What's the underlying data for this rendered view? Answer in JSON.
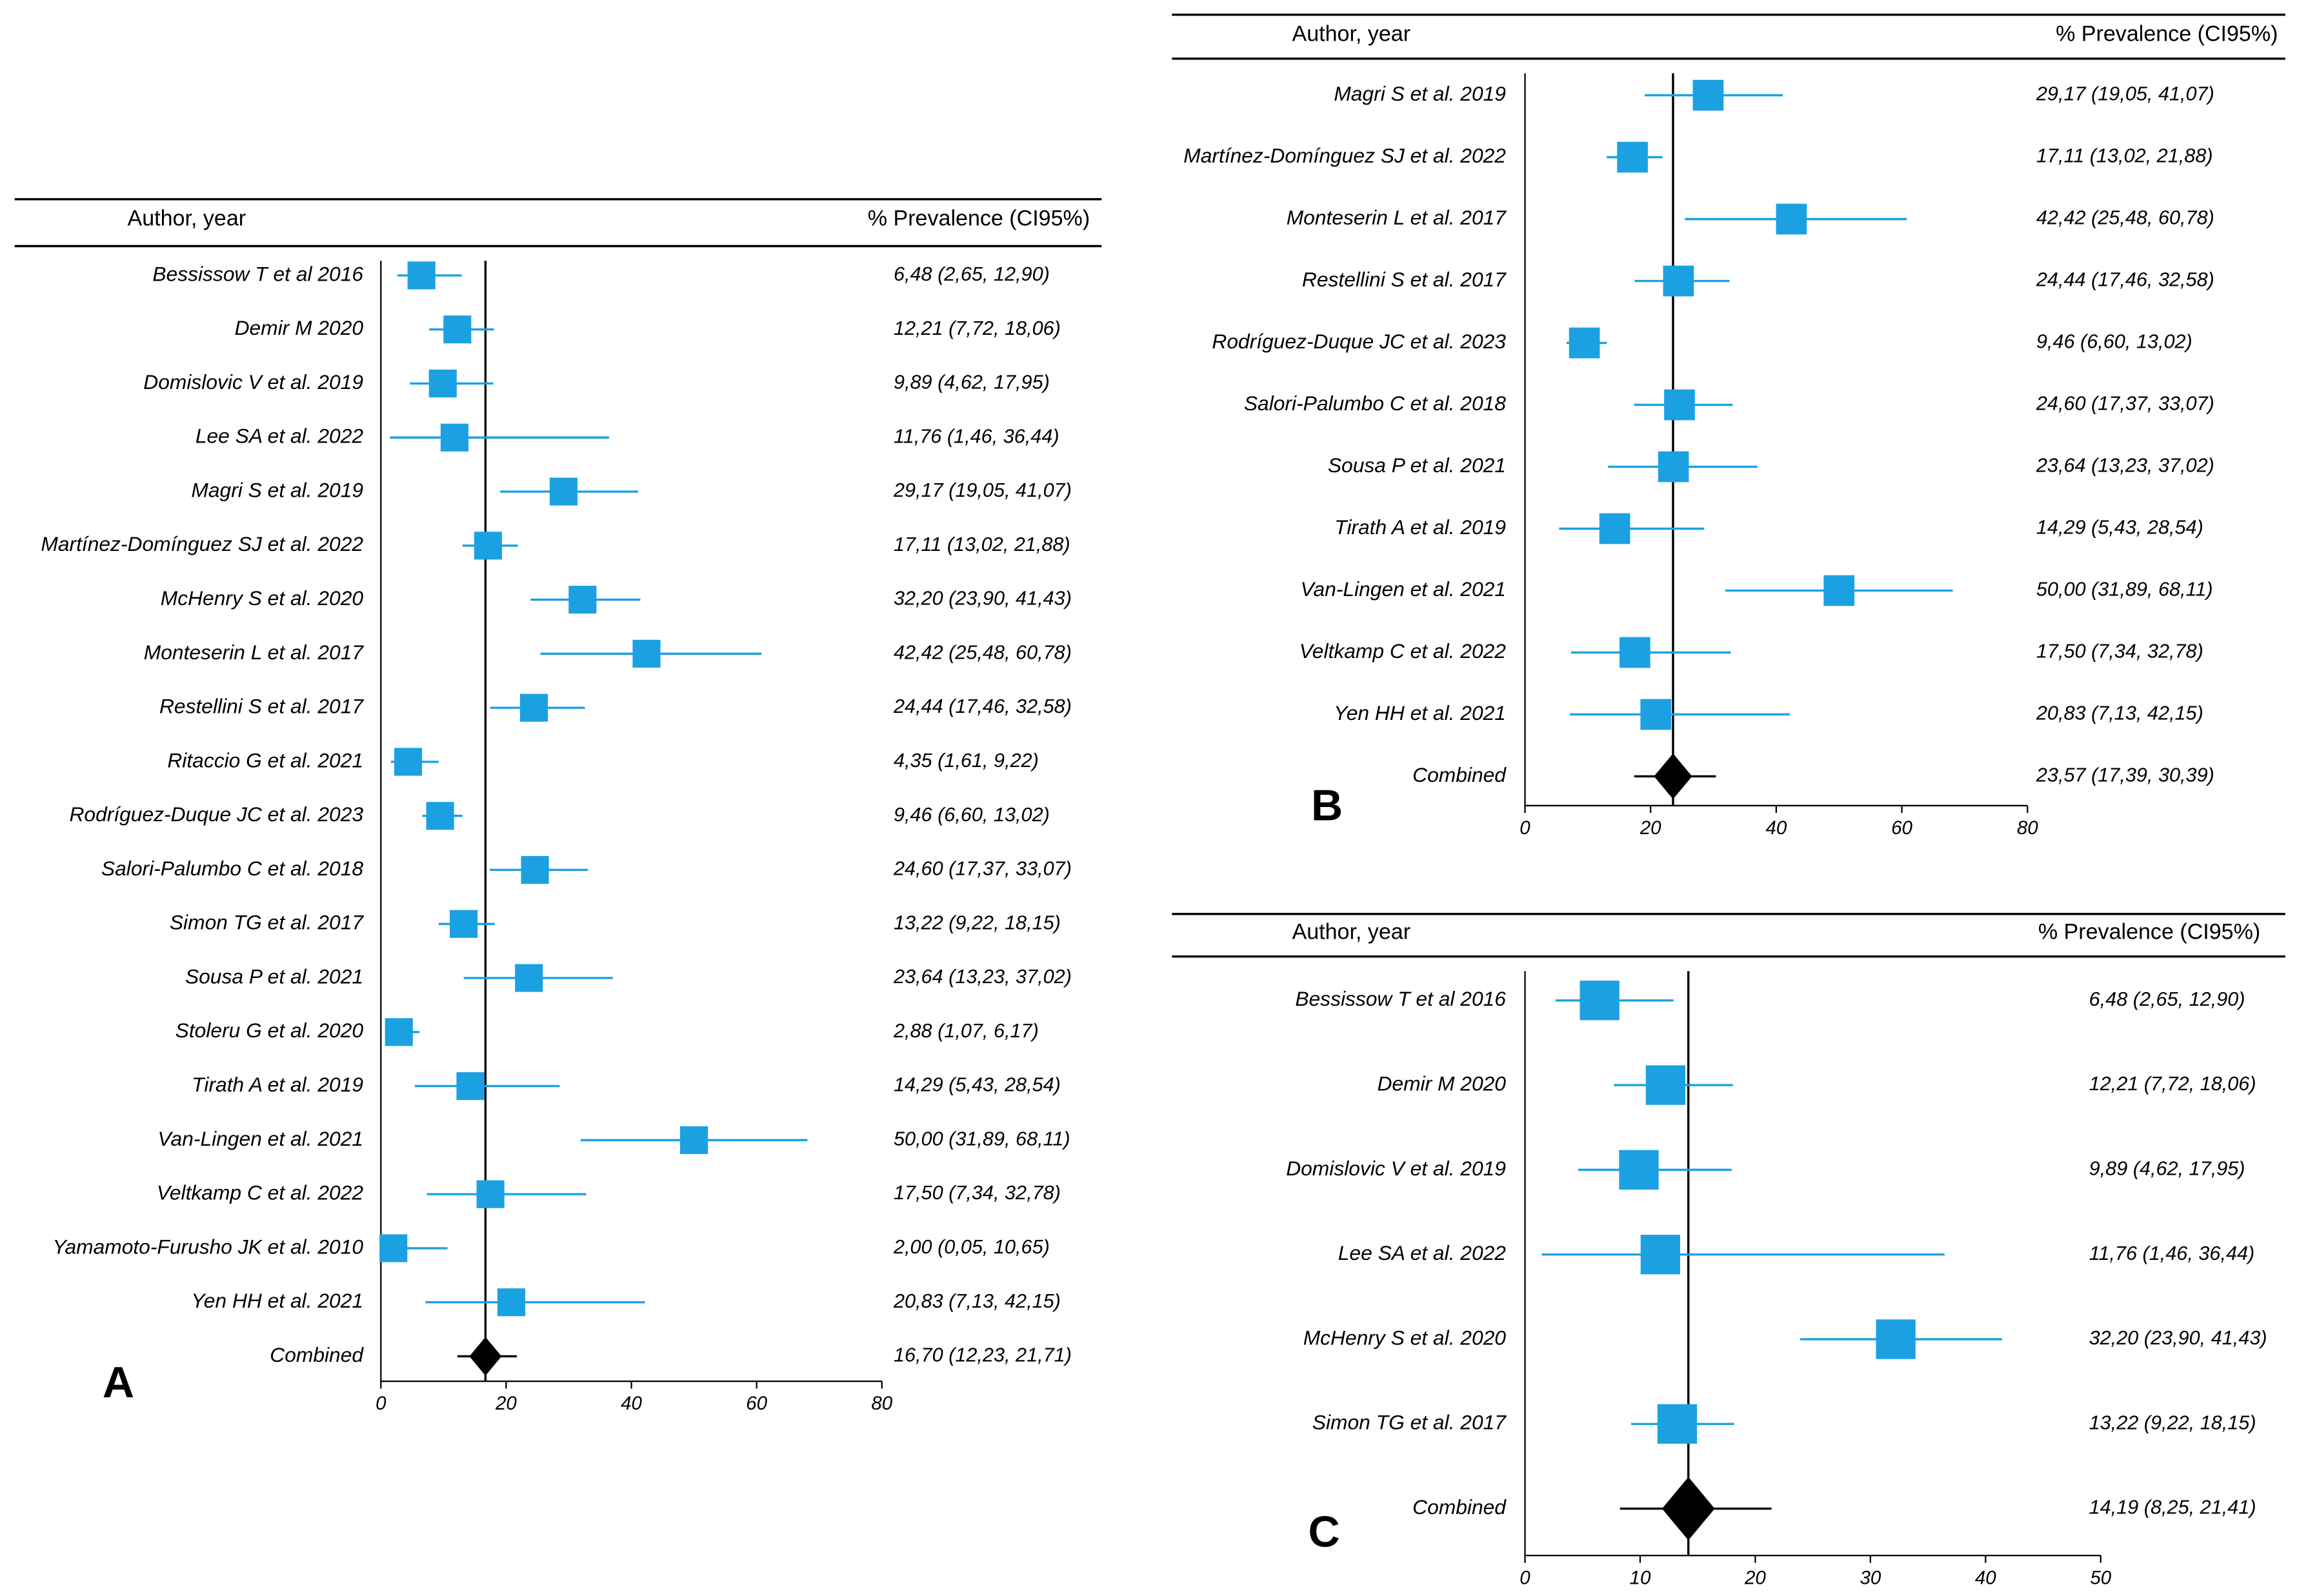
{
  "chart_data": [
    {
      "type": "forest",
      "label": "A",
      "column_headers": [
        "Author, year",
        "% Prevalence (CI95%)"
      ],
      "color": "#1ba1e2",
      "categories": [
        "Bessissow T et al 2016",
        "Demir M  2020",
        "Domislovic V et al. 2019",
        "Lee SA et al. 2022",
        "Magri S et al. 2019",
        "Martínez-Domínguez SJ et al. 2022",
        "McHenry S et al. 2020",
        "Monteserin L et al. 2017",
        "Restellini S et al. 2017",
        "Ritaccio G et al. 2021",
        "Rodríguez-Duque JC et al. 2023",
        "Salori-Palumbo C et al. 2018",
        "Simon TG et al. 2017",
        "Sousa P et al. 2021",
        "Stoleru G et al. 2020",
        "Tirath A et al. 2019",
        "Van-Lingen et al. 2021",
        "Veltkamp C et al. 2022",
        "Yamamoto-Furusho JK et al. 2010",
        "Yen HH et al. 2021"
      ],
      "values": [
        6.48,
        12.21,
        9.89,
        11.76,
        29.17,
        17.11,
        32.2,
        42.42,
        24.44,
        4.35,
        9.46,
        24.6,
        13.22,
        23.64,
        2.88,
        14.29,
        50.0,
        17.5,
        2.0,
        20.83
      ],
      "lower": [
        2.65,
        7.72,
        4.62,
        1.46,
        19.05,
        13.02,
        23.9,
        25.48,
        17.46,
        1.61,
        6.6,
        17.37,
        9.22,
        13.23,
        1.07,
        5.43,
        31.89,
        7.34,
        0.05,
        7.13
      ],
      "upper": [
        12.9,
        18.06,
        17.95,
        36.44,
        41.07,
        21.88,
        41.43,
        60.78,
        32.58,
        9.22,
        13.02,
        33.07,
        18.15,
        37.02,
        6.17,
        28.54,
        68.11,
        32.78,
        10.65,
        42.15
      ],
      "value_labels": [
        "6,48 (2,65, 12,90)",
        "12,21 (7,72, 18,06)",
        "9,89 (4,62, 17,95)",
        "11,76 (1,46, 36,44)",
        "29,17 (19,05, 41,07)",
        "17,11 (13,02, 21,88)",
        "32,20 (23,90, 41,43)",
        "42,42 (25,48, 60,78)",
        "24,44 (17,46, 32,58)",
        "4,35 (1,61, 9,22)",
        "9,46 (6,60, 13,02)",
        "24,60 (17,37, 33,07)",
        "13,22 (9,22, 18,15)",
        "23,64 (13,23, 37,02)",
        "2,88 (1,07, 6,17)",
        "14,29 (5,43, 28,54)",
        "50,00 (31,89, 68,11)",
        "17,50 (7,34, 32,78)",
        "2,00 (0,05, 10,65)",
        "20,83 (7,13, 42,15)"
      ],
      "combined": {
        "name": "Combined",
        "value": 16.7,
        "lower": 12.23,
        "upper": 21.71,
        "value_label": "16,70 (12,23, 21,71)"
      },
      "xlim": [
        0,
        80
      ],
      "xticks": [
        0,
        20,
        40,
        60,
        80
      ]
    },
    {
      "type": "forest",
      "label": "B",
      "column_headers": [
        "Author, year",
        "% Prevalence (CI95%)"
      ],
      "color": "#1ba1e2",
      "categories": [
        "Magri S et al. 2019",
        "Martínez-Domínguez SJ et al. 2022",
        "Monteserin L et al. 2017",
        "Restellini S et al. 2017",
        "Rodríguez-Duque JC et al. 2023",
        "Salori-Palumbo C et al. 2018",
        "Sousa P et al. 2021",
        "Tirath A et al. 2019",
        "Van-Lingen et al. 2021",
        "Veltkamp C et al. 2022",
        "Yen HH et al. 2021"
      ],
      "values": [
        29.17,
        17.11,
        42.42,
        24.44,
        9.46,
        24.6,
        23.64,
        14.29,
        50.0,
        17.5,
        20.83
      ],
      "lower": [
        19.05,
        13.02,
        25.48,
        17.46,
        6.6,
        17.37,
        13.23,
        5.43,
        31.89,
        7.34,
        7.13
      ],
      "upper": [
        41.07,
        21.88,
        60.78,
        32.58,
        13.02,
        33.07,
        37.02,
        28.54,
        68.11,
        32.78,
        42.15
      ],
      "value_labels": [
        "29,17 (19,05, 41,07)",
        "17,11 (13,02, 21,88)",
        "42,42 (25,48, 60,78)",
        "24,44 (17,46, 32,58)",
        "9,46 (6,60, 13,02)",
        "24,60 (17,37, 33,07)",
        "23,64 (13,23, 37,02)",
        "14,29 (5,43, 28,54)",
        "50,00 (31,89, 68,11)",
        "17,50 (7,34, 32,78)",
        "20,83 (7,13, 42,15)"
      ],
      "combined": {
        "name": "Combined",
        "value": 23.57,
        "lower": 17.39,
        "upper": 30.39,
        "value_label": "23,57 (17,39, 30,39)"
      },
      "xlim": [
        0,
        80
      ],
      "xticks": [
        0,
        20,
        40,
        60,
        80
      ]
    },
    {
      "type": "forest",
      "label": "C",
      "column_headers": [
        "Author, year",
        "% Prevalence (CI95%)"
      ],
      "color": "#1ba1e2",
      "categories": [
        "Bessissow T et al 2016",
        "Demir M  2020",
        "Domislovic V et al. 2019",
        "Lee SA et al. 2022",
        "McHenry S et al. 2020",
        "Simon TG et al. 2017"
      ],
      "values": [
        6.48,
        12.21,
        9.89,
        11.76,
        32.2,
        13.22
      ],
      "lower": [
        2.65,
        7.72,
        4.62,
        1.46,
        23.9,
        9.22
      ],
      "upper": [
        12.9,
        18.06,
        17.95,
        36.44,
        41.43,
        18.15
      ],
      "value_labels": [
        "6,48 (2,65, 12,90)",
        "12,21 (7,72, 18,06)",
        "9,89 (4,62, 17,95)",
        "11,76 (1,46, 36,44)",
        "32,20 (23,90, 41,43)",
        "13,22 (9,22, 18,15)"
      ],
      "combined": {
        "name": "Combined",
        "value": 14.19,
        "lower": 8.25,
        "upper": 21.41,
        "value_label": "14,19 (8,25, 21,41)"
      },
      "xlim": [
        0,
        50
      ],
      "xticks": [
        0,
        10,
        20,
        30,
        40,
        50
      ]
    }
  ]
}
